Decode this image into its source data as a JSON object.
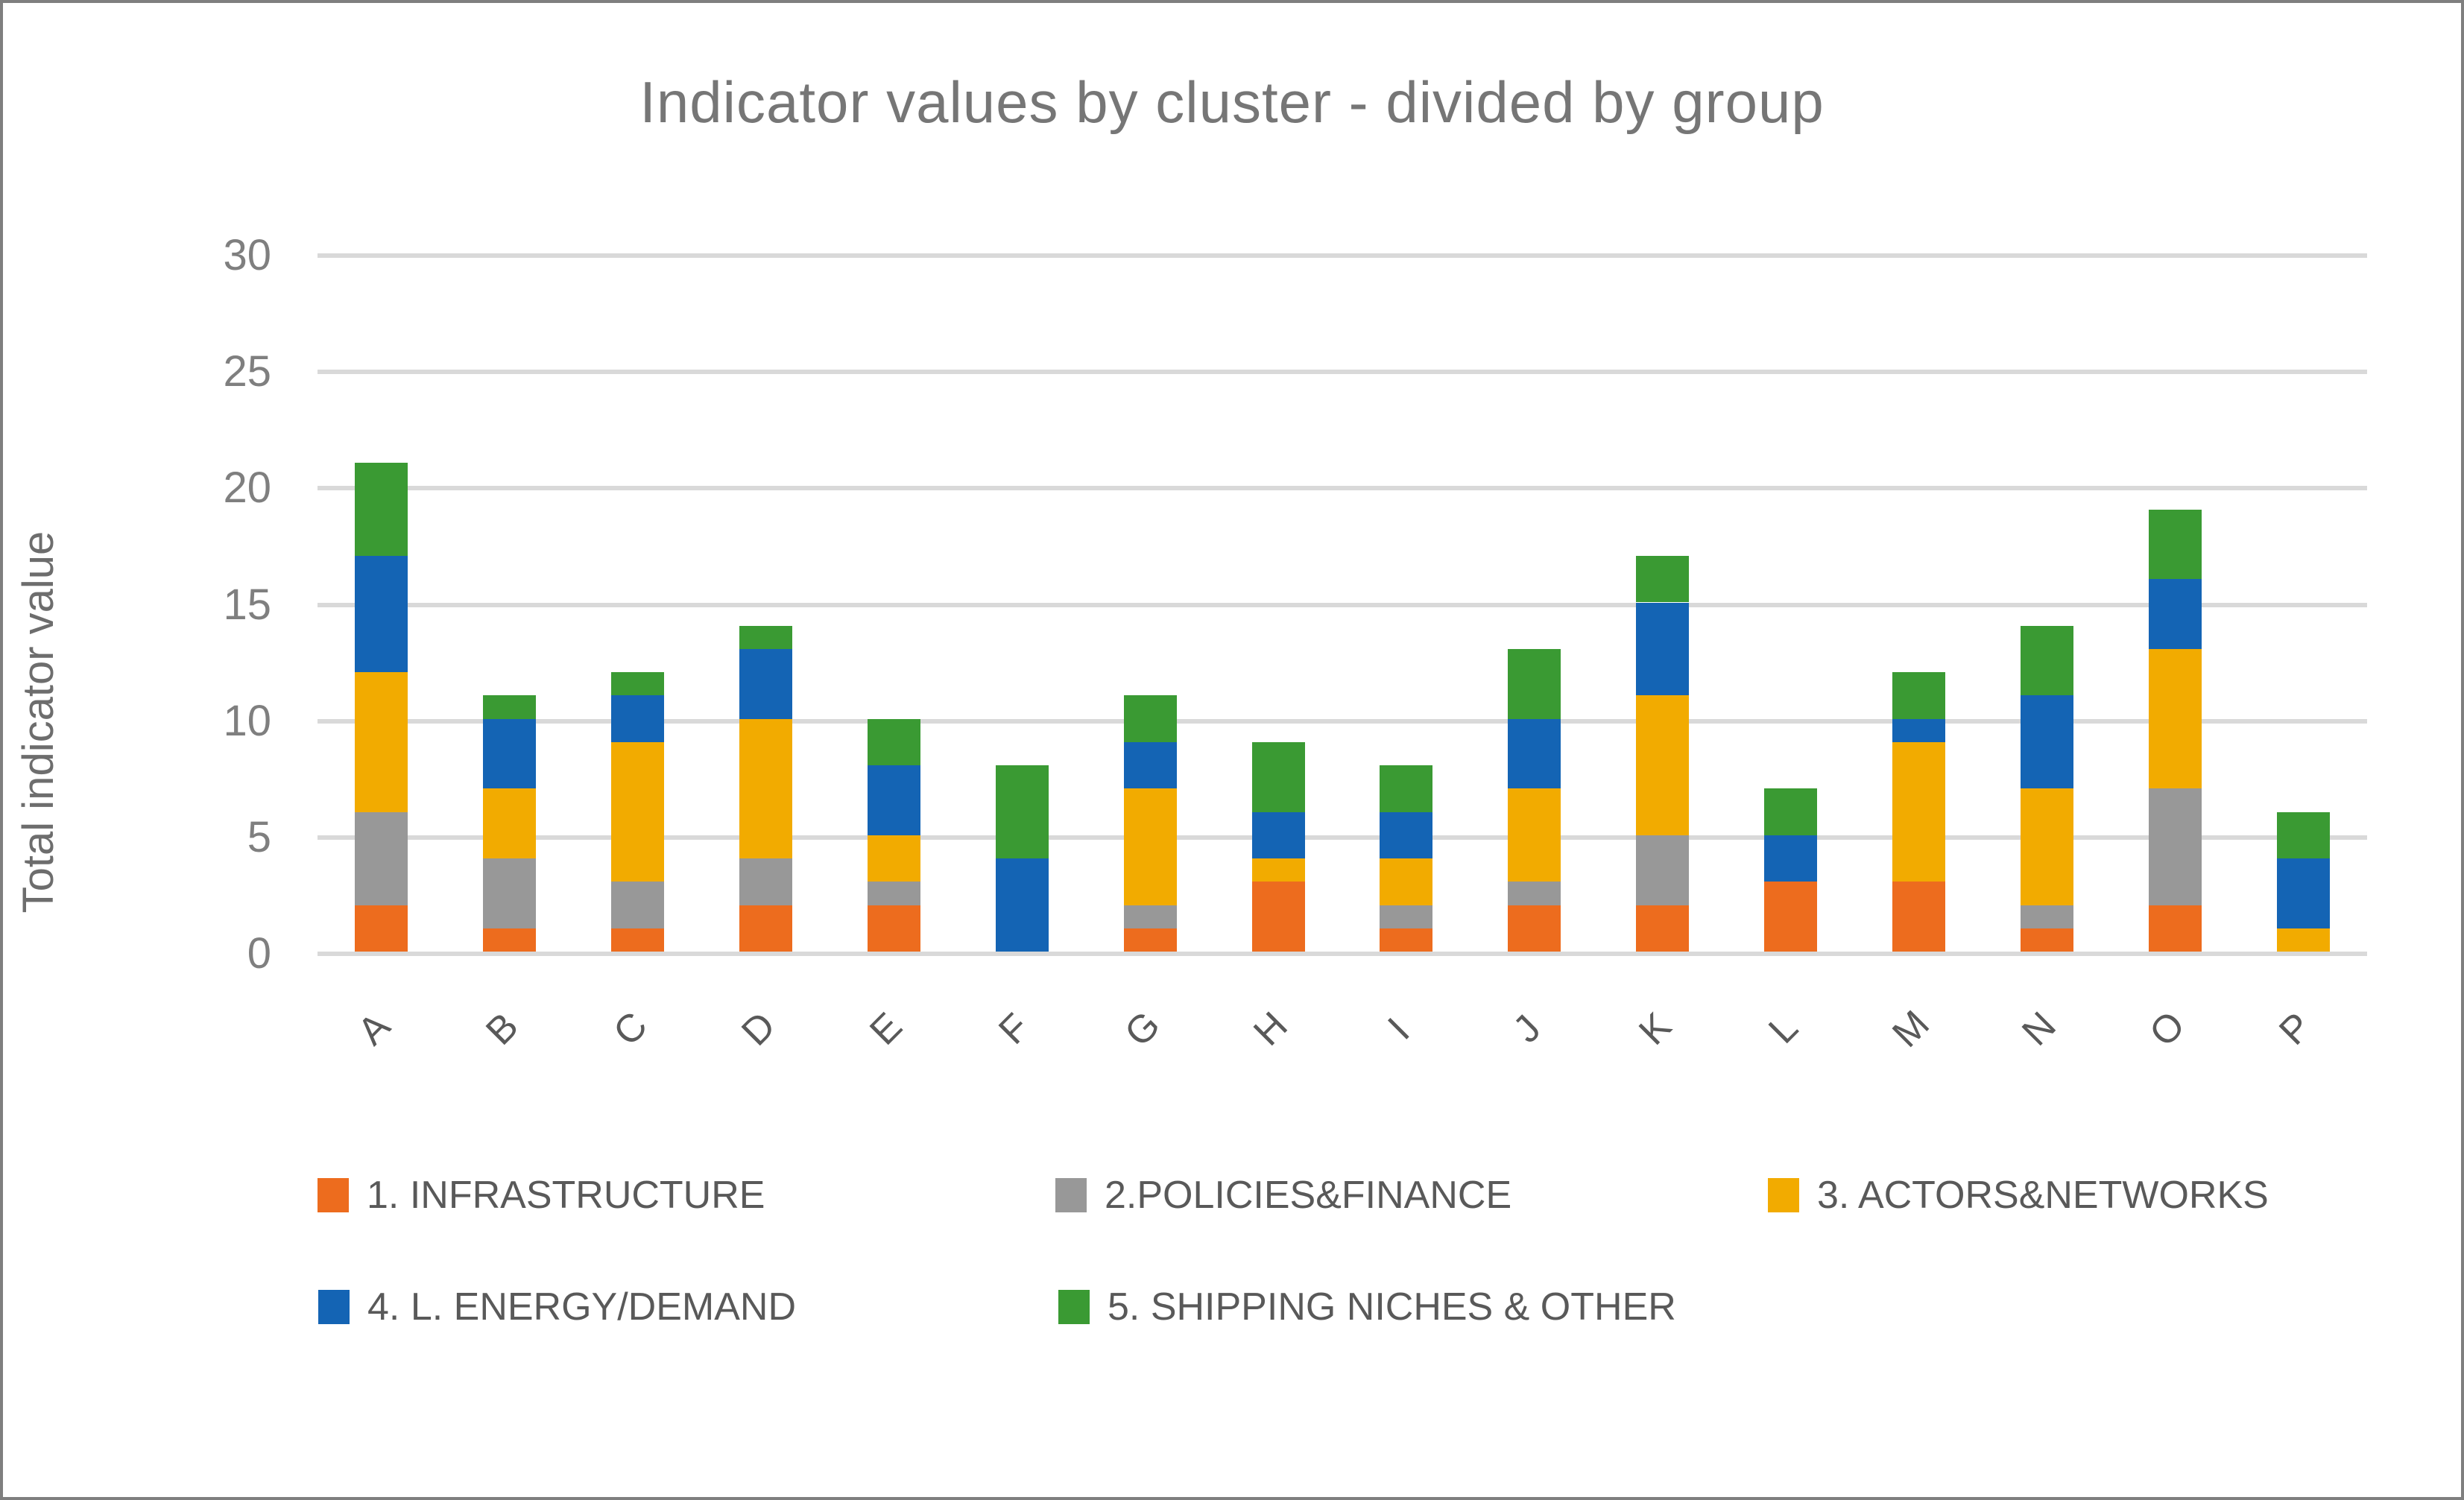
{
  "chart_data": {
    "type": "bar",
    "stacked": true,
    "title": "Indicator values by cluster - divided by group",
    "ylabel": "Total indicator value",
    "xlabel": "",
    "ylim": [
      0,
      30
    ],
    "yticks": [
      0,
      5,
      10,
      15,
      20,
      25,
      30
    ],
    "grid": true,
    "legend_position": "bottom",
    "categories": [
      "A",
      "B",
      "C",
      "D",
      "E",
      "F",
      "G",
      "H",
      "I",
      "J",
      "K",
      "L",
      "M",
      "N",
      "O",
      "P"
    ],
    "series": [
      {
        "name": "1. INFRASTRUCTURE",
        "color": "#ED6C1E",
        "values": [
          2,
          1,
          1,
          2,
          2,
          0,
          1,
          3,
          1,
          2,
          2,
          3,
          3,
          1,
          2,
          0
        ]
      },
      {
        "name": "2.POLICIES&FINANCE",
        "color": "#989898",
        "values": [
          4,
          3,
          2,
          2,
          1,
          0,
          1,
          0,
          1,
          1,
          3,
          0,
          0,
          1,
          5,
          0
        ]
      },
      {
        "name": "3. ACTORS&NETWORKS",
        "color": "#F2AB00",
        "values": [
          6,
          3,
          6,
          6,
          2,
          0,
          5,
          1,
          2,
          4,
          6,
          0,
          6,
          5,
          6,
          1
        ]
      },
      {
        "name": "4. L. ENERGY/DEMAND",
        "color": "#1464B4",
        "values": [
          5,
          3,
          2,
          3,
          3,
          4,
          2,
          2,
          2,
          3,
          4,
          2,
          1,
          4,
          3,
          3
        ]
      },
      {
        "name": "5. SHIPPING NICHES & OTHER",
        "color": "#3A9A33",
        "values": [
          4,
          1,
          1,
          1,
          2,
          4,
          2,
          3,
          2,
          3,
          2,
          2,
          2,
          3,
          3,
          2
        ]
      }
    ],
    "totals": [
      21,
      11,
      12,
      14,
      10,
      8,
      11,
      9,
      8,
      13,
      17,
      7,
      12,
      14,
      19,
      6
    ],
    "colors": {
      "gridline": "#D9D9D9",
      "title_text": "#767676",
      "tick_text": "#7F7F7F",
      "category_text": "#595959",
      "legend_text": "#595959",
      "frame_border": "#7F7F7F"
    }
  }
}
